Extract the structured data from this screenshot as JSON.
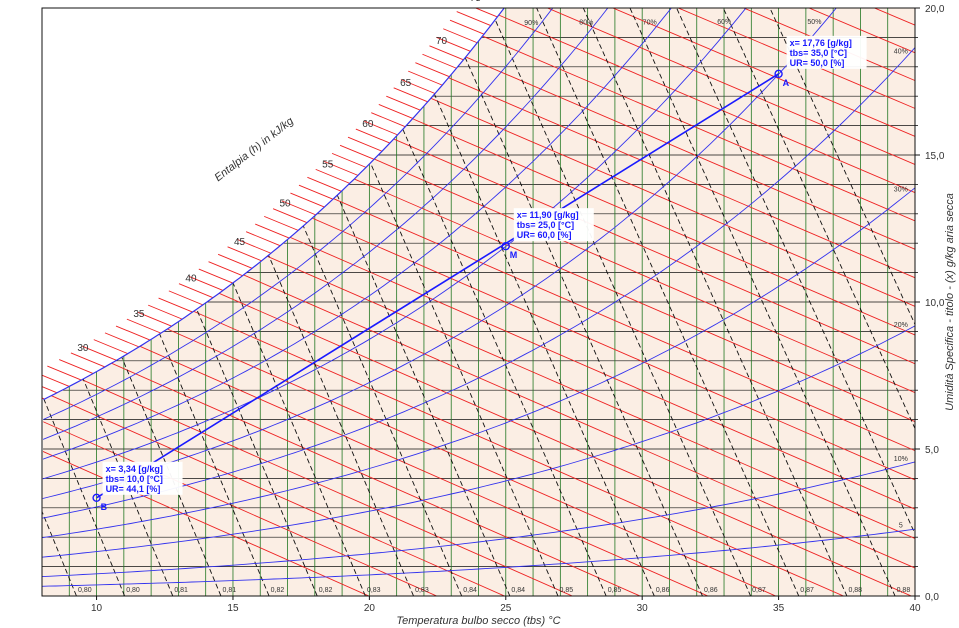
{
  "chart_data": {
    "type": "scatter",
    "chart_kind": "psychrometric",
    "xlabel": "Temperatura bulbo secco (tbs) °C",
    "ylabel": "Umidità Specifica - titolo - (x) g/kg aria secca",
    "enthalpy_label": "Entalpia (h) in kJ/kg",
    "xlim": [
      8,
      40
    ],
    "ylim": [
      0,
      20
    ],
    "x_ticks": [
      "10",
      "15",
      "20",
      "25",
      "30",
      "35",
      "40"
    ],
    "y_ticks": [
      "0,0",
      "5,0",
      "10,0",
      "15,0",
      "20,0"
    ],
    "enthalpy_ticks": [
      "30",
      "35",
      "40",
      "45",
      "50",
      "55",
      "60",
      "65",
      "70",
      "75"
    ],
    "rh_labels": [
      "5",
      "10%",
      "20%",
      "30%",
      "40%",
      "50%",
      "60%",
      "70%",
      "80%",
      "90%"
    ],
    "volume_labels": [
      "0,80",
      "0,80",
      "0,81",
      "0,81",
      "0,82",
      "0,82",
      "0,83",
      "0,83",
      "0,84",
      "0,84",
      "0,85",
      "0,85",
      "0,86",
      "0,86",
      "0,87",
      "0,87",
      "0,88",
      "0,88"
    ],
    "points": [
      {
        "name": "A",
        "tbs": 35.0,
        "x": 17.76,
        "lines": [
          "x= 17,76 [g/kg]",
          "tbs= 35,0 [°C]",
          "UR= 50,0 [%]"
        ]
      },
      {
        "name": "M",
        "tbs": 25.0,
        "x": 11.9,
        "lines": [
          "x= 11,90 [g/kg]",
          "tbs= 25,0 [°C]",
          "UR= 60,0 [%]"
        ]
      },
      {
        "name": "B",
        "tbs": 10.0,
        "x": 3.34,
        "lines": [
          "x= 3,34 [g/kg]",
          "tbs= 10,0 [°C]",
          "UR= 44,1 [%]"
        ]
      }
    ],
    "colors": {
      "background": "#fbeee4",
      "rh_lines": "#3333ee",
      "enthalpy_lines": "#ee2222",
      "vertical_lines": "#227722",
      "volume_lines": "#111111",
      "mix_line": "#1a1aff"
    }
  }
}
